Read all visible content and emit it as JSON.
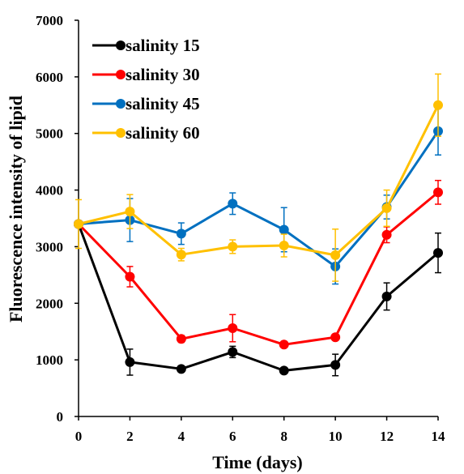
{
  "chart_data": {
    "type": "line",
    "title": "",
    "xlabel": "Time (days)",
    "ylabel": "Fluorescence intensity of lipid",
    "x": [
      0,
      2,
      4,
      6,
      8,
      10,
      12,
      14
    ],
    "x_ticks": [
      "0",
      "2",
      "4",
      "6",
      "8",
      "10",
      "12",
      "14"
    ],
    "xlim": [
      0,
      14
    ],
    "ylim": [
      0,
      7000
    ],
    "y_ticks": [
      "0",
      "1000",
      "2000",
      "3000",
      "4000",
      "5000",
      "6000",
      "7000"
    ],
    "grid": false,
    "legend_position": "top-left",
    "series": [
      {
        "name": "salinity 15",
        "color": "#000000",
        "values": [
          3400,
          960,
          840,
          1140,
          810,
          910,
          2120,
          2890
        ],
        "errors": [
          0,
          230,
          40,
          100,
          30,
          190,
          240,
          350
        ]
      },
      {
        "name": "salinity 30",
        "color": "#ff0000",
        "values": [
          3400,
          2470,
          1370,
          1560,
          1270,
          1400,
          3210,
          3960
        ],
        "errors": [
          0,
          180,
          60,
          240,
          30,
          40,
          140,
          210
        ]
      },
      {
        "name": "salinity 45",
        "color": "#0070c0",
        "values": [
          3400,
          3470,
          3230,
          3760,
          3300,
          2650,
          3700,
          5040
        ],
        "errors": [
          0,
          380,
          190,
          190,
          390,
          310,
          210,
          420
        ]
      },
      {
        "name": "salinity 60",
        "color": "#ffc000",
        "values": [
          3400,
          3620,
          2860,
          3000,
          3020,
          2850,
          3680,
          5500
        ],
        "errors": [
          430,
          300,
          110,
          120,
          200,
          460,
          320,
          550
        ]
      }
    ]
  }
}
